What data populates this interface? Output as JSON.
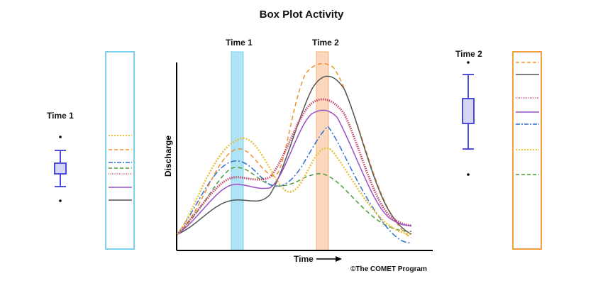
{
  "title": "Box Plot Activity",
  "labels": {
    "time1_band": "Time 1",
    "time2_band": "Time 2",
    "time1_box": "Time 1",
    "time2_box": "Time 2",
    "ylabel": "Discharge",
    "xlabel": "Time"
  },
  "credit": "©The COMET Program",
  "colors": {
    "time1_band": "#aee3f6",
    "time2_band": "#fbd8bd",
    "time1_panel_border": "#7fd0ef",
    "time2_panel_border": "#f0a040",
    "box": "#4d4ddb",
    "box_fill": "#d5d5f5"
  },
  "series": [
    {
      "color": "#f0902a",
      "dash": "dashed"
    },
    {
      "color": "#555555",
      "dash": "solid"
    },
    {
      "color": "#c44b6a",
      "dash": "dotted-thick"
    },
    {
      "color": "#9a4fc8",
      "dash": "solid"
    },
    {
      "color": "#2f6fd0",
      "dash": "dash-dot"
    },
    {
      "color": "#e8c23a",
      "dash": "dotted"
    },
    {
      "color": "#4a9a3a",
      "dash": "dashed"
    }
  ]
}
